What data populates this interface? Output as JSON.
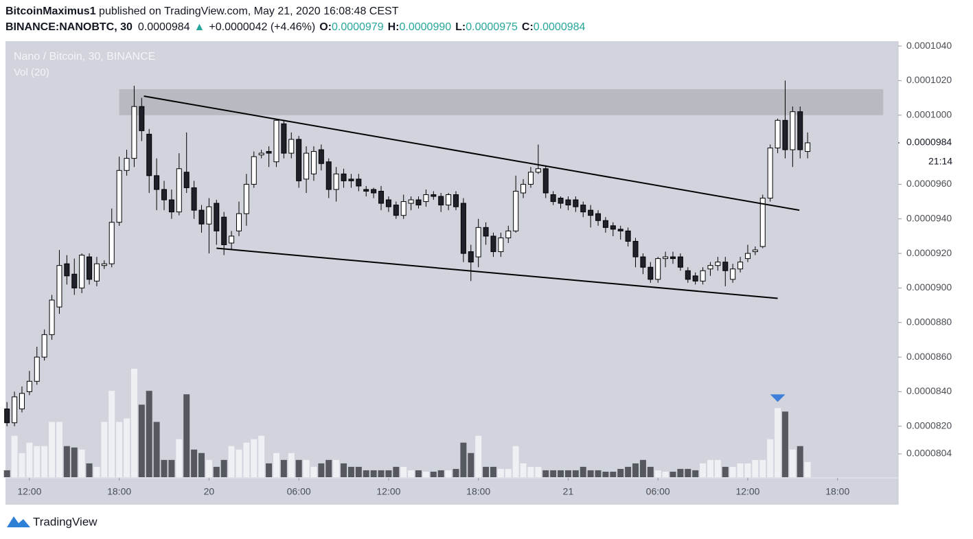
{
  "header": {
    "author": "BitcoinMaximus1",
    "published": " published on TradingView.com, May 21, 2020 16:08:48 CEST",
    "symbol": "BINANCE:NANOBTC, 30",
    "price": "0.0000984",
    "arrow": "▲",
    "change": "+0.0000042 (+4.46%)",
    "o_label": "O:",
    "o": "0.0000979",
    "h_label": "H:",
    "h": "0.0000990",
    "l_label": "L:",
    "l": "0.0000975",
    "c_label": "C:",
    "c": "0.0000984"
  },
  "legend": {
    "title": "Nano / Bitcoin, 30, BINANCE",
    "volume": "Vol (20)"
  },
  "footer": {
    "brand": "TradingView"
  },
  "chart_data": {
    "type": "candlestick",
    "open": [
      8.3e-05,
      8.22e-05,
      8.3e-05,
      8.4e-05,
      8.46e-05,
      8.6e-05,
      8.73e-05,
      8.89e-05,
      9.14e-05,
      9.08e-05,
      9e-05,
      9.18e-05,
      9.04e-05,
      9.13e-05,
      9.14e-05,
      9.38e-05,
      9.68e-05,
      9.75e-05,
      0.0001005,
      9.89e-05,
      9.65e-05,
      9.57e-05,
      9.51e-05,
      9.44e-05,
      9.67e-05,
      9.58e-05,
      9.45e-05,
      9.37e-05,
      9.49e-05,
      9.41e-05,
      9.26e-05,
      9.33e-05,
      9.43e-05,
      9.6e-05,
      9.77e-05,
      9.79e-05,
      9.73e-05,
      9.95e-05,
      9.78e-05,
      9.86e-05,
      9.63e-05,
      9.66e-05,
      9.8e-05,
      9.73e-05,
      9.57e-05,
      9.66e-05,
      9.63e-05,
      9.63e-05,
      9.57e-05,
      9.57e-05,
      9.56e-05,
      9.51e-05,
      9.48e-05,
      9.42e-05,
      9.49e-05,
      9.51e-05,
      9.5e-05,
      9.54e-05,
      9.53e-05,
      9.48e-05,
      9.54e-05,
      9.49e-05,
      9.21e-05,
      9.18e-05,
      9.35e-05,
      9.3e-05,
      9.21e-05,
      9.29e-05,
      9.33e-05,
      9.55e-05,
      9.6e-05,
      9.67e-05,
      9.69e-05,
      9.54e-05,
      9.52e-05,
      9.51e-05,
      9.51e-05,
      9.48e-05,
      9.45e-05,
      9.43e-05,
      9.39e-05,
      9.36e-05,
      9.34e-05,
      9.33e-05,
      9.27e-05,
      9.18e-05,
      9.12e-05,
      9.05e-05,
      9.17e-05,
      9.18e-05,
      9.18e-05,
      9.1e-05,
      9.07e-05,
      9.04e-05,
      9.11e-05,
      9.13e-05,
      9.15e-05,
      9.05e-05,
      9.11e-05,
      9.17e-05,
      9.21e-05,
      9.24e-05,
      9.52e-05,
      9.81e-05,
      9.97e-05,
      9.8e-05,
      0.0001002,
      9.79e-05
    ],
    "high": [
      8.34e-05,
      8.4e-05,
      8.43e-05,
      8.52e-05,
      8.66e-05,
      8.76e-05,
      8.96e-05,
      9.22e-05,
      9.19e-05,
      9.17e-05,
      9.2e-05,
      9.2e-05,
      9.18e-05,
      9.16e-05,
      9.46e-05,
      9.76e-05,
      9.8e-05,
      0.0001017,
      0.000101,
      9.92e-05,
      9.75e-05,
      9.62e-05,
      9.57e-05,
      9.78e-05,
      9.9e-05,
      9.62e-05,
      9.48e-05,
      9.52e-05,
      9.51e-05,
      9.44e-05,
      9.33e-05,
      9.5e-05,
      9.66e-05,
      9.79e-05,
      9.8e-05,
      9.82e-05,
      9.98e-05,
      9.97e-05,
      9.9e-05,
      9.88e-05,
      9.82e-05,
      9.82e-05,
      9.83e-05,
      9.75e-05,
      9.7e-05,
      9.69e-05,
      9.66e-05,
      9.66e-05,
      9.59e-05,
      9.58e-05,
      9.59e-05,
      9.53e-05,
      9.5e-05,
      9.54e-05,
      9.53e-05,
      9.53e-05,
      9.57e-05,
      9.56e-05,
      9.55e-05,
      9.55e-05,
      9.56e-05,
      9.52e-05,
      9.25e-05,
      9.4e-05,
      9.38e-05,
      9.32e-05,
      9.32e-05,
      9.36e-05,
      9.65e-05,
      9.63e-05,
      9.7e-05,
      9.83e-05,
      9.71e-05,
      9.56e-05,
      9.53e-05,
      9.53e-05,
      9.53e-05,
      9.5e-05,
      9.48e-05,
      9.45e-05,
      9.41e-05,
      9.38e-05,
      9.36e-05,
      9.35e-05,
      9.29e-05,
      9.2e-05,
      9.15e-05,
      9.18e-05,
      9.21e-05,
      9.21e-05,
      9.2e-05,
      9.12e-05,
      9.09e-05,
      9.12e-05,
      9.15e-05,
      9.18e-05,
      9.18e-05,
      9.14e-05,
      9.18e-05,
      9.25e-05,
      9.24e-05,
      9.54e-05,
      9.83e-05,
      9.98e-05,
      0.000102,
      0.0001005,
      0.0001005,
      9.9e-05
    ],
    "low": [
      8.2e-05,
      8.2e-05,
      8.28e-05,
      8.38e-05,
      8.44e-05,
      8.58e-05,
      8.7e-05,
      8.85e-05,
      9.02e-05,
      8.96e-05,
      8.97e-05,
      9.02e-05,
      9.01e-05,
      9.11e-05,
      9.12e-05,
      9.36e-05,
      9.65e-05,
      9.7e-05,
      9.85e-05,
      9.55e-05,
      9.45e-05,
      9.45e-05,
      9.4e-05,
      9.42e-05,
      9.55e-05,
      9.4e-05,
      9.32e-05,
      9.2e-05,
      9.25e-05,
      9.19e-05,
      9.22e-05,
      9.3e-05,
      9.36e-05,
      9.58e-05,
      9.75e-05,
      9.7e-05,
      9.7e-05,
      9.75e-05,
      9.75e-05,
      9.58e-05,
      9.55e-05,
      9.62e-05,
      9.68e-05,
      9.52e-05,
      9.5e-05,
      9.58e-05,
      9.58e-05,
      9.56e-05,
      9.53e-05,
      9.52e-05,
      9.45e-05,
      9.44e-05,
      9.4e-05,
      9.4e-05,
      9.45e-05,
      9.46e-05,
      9.47e-05,
      9.51e-05,
      9.44e-05,
      9.45e-05,
      9.45e-05,
      9.15e-05,
      9.04e-05,
      9.12e-05,
      9.25e-05,
      9.18e-05,
      9.18e-05,
      9.26e-05,
      9.32e-05,
      9.52e-05,
      9.58e-05,
      9.66e-05,
      9.52e-05,
      9.48e-05,
      9.46e-05,
      9.45e-05,
      9.44e-05,
      9.41e-05,
      9.35e-05,
      9.36e-05,
      9.32e-05,
      9.3e-05,
      9.28e-05,
      9.24e-05,
      9.12e-05,
      9.08e-05,
      9.03e-05,
      9.03e-05,
      9.12e-05,
      9.14e-05,
      9.1e-05,
      9.03e-05,
      9.02e-05,
      9.02e-05,
      9.07e-05,
      9.1e-05,
      9.01e-05,
      9.03e-05,
      9.09e-05,
      9.15e-05,
      9.19e-05,
      9.23e-05,
      9.5e-05,
      9.78e-05,
      9.75e-05,
      9.7e-05,
      9.75e-05,
      9.75e-05
    ],
    "close": [
      8.22e-05,
      8.37e-05,
      8.39e-05,
      8.46e-05,
      8.6e-05,
      8.73e-05,
      8.93e-05,
      9.13e-05,
      9.07e-05,
      9e-05,
      9.19e-05,
      9.05e-05,
      9.14e-05,
      9.14e-05,
      9.38e-05,
      9.68e-05,
      9.75e-05,
      0.0001005,
      9.91e-05,
      9.65e-05,
      9.57e-05,
      9.51e-05,
      9.44e-05,
      9.69e-05,
      9.58e-05,
      9.45e-05,
      9.37e-05,
      9.47e-05,
      9.33e-05,
      9.25e-05,
      9.3e-05,
      9.43e-05,
      9.6e-05,
      9.76e-05,
      9.78e-05,
      9.78e-05,
      9.97e-05,
      9.78e-05,
      9.86e-05,
      9.62e-05,
      9.78e-05,
      9.79e-05,
      9.72e-05,
      9.57e-05,
      9.66e-05,
      9.62e-05,
      9.62e-05,
      9.59e-05,
      9.56e-05,
      9.55e-05,
      9.49e-05,
      9.47e-05,
      9.42e-05,
      9.5e-05,
      9.51e-05,
      9.48e-05,
      9.54e-05,
      9.53e-05,
      9.48e-05,
      9.54e-05,
      9.47e-05,
      9.2e-05,
      9.15e-05,
      9.35e-05,
      9.3e-05,
      9.21e-05,
      9.29e-05,
      9.33e-05,
      9.56e-05,
      9.6e-05,
      9.67e-05,
      9.69e-05,
      9.55e-05,
      9.5e-05,
      9.49e-05,
      9.48e-05,
      9.47e-05,
      9.44e-05,
      9.42e-05,
      9.39e-05,
      9.35e-05,
      9.34e-05,
      9.33e-05,
      9.27e-05,
      9.18e-05,
      9.12e-05,
      9.05e-05,
      9.17e-05,
      9.18e-05,
      9.17e-05,
      9.12e-05,
      9.05e-05,
      9.04e-05,
      9.1e-05,
      9.13e-05,
      9.15e-05,
      9.1e-05,
      9.11e-05,
      9.15e-05,
      9.2e-05,
      9.22e-05,
      9.52e-05,
      9.81e-05,
      9.97e-05,
      9.8e-05,
      0.0001002,
      9.8e-05,
      9.84e-05
    ],
    "volume": [
      10,
      60,
      35,
      50,
      45,
      45,
      80,
      80,
      45,
      43,
      40,
      20,
      15,
      80,
      125,
      80,
      85,
      157,
      105,
      125,
      80,
      25,
      25,
      55,
      120,
      40,
      35,
      25,
      15,
      25,
      45,
      40,
      50,
      55,
      60,
      20,
      35,
      25,
      35,
      25,
      25,
      15,
      20,
      25,
      25,
      20,
      15,
      15,
      10,
      10,
      10,
      10,
      15,
      15,
      10,
      10,
      8,
      8,
      10,
      10,
      12,
      50,
      35,
      60,
      15,
      15,
      12,
      12,
      45,
      20,
      15,
      15,
      10,
      10,
      10,
      10,
      10,
      15,
      10,
      10,
      8,
      8,
      12,
      15,
      20,
      25,
      15,
      10,
      8,
      8,
      12,
      12,
      10,
      20,
      25,
      25,
      15,
      15,
      20,
      20,
      25,
      25,
      55,
      100,
      95,
      40,
      45,
      22
    ],
    "up_color": "#ffffff",
    "down_color": "#1e2129",
    "volume_up_color": "#eef0f4",
    "volume_down_color": "#55585f",
    "wick_color": "#000000",
    "ylim": [
      7.905e-05,
      0.00010428
    ],
    "yticks": [
      {
        "value": 0.000104,
        "label": "0.0001040"
      },
      {
        "value": 0.000102,
        "label": "0.0001020"
      },
      {
        "value": 0.0001,
        "label": "0.0001000"
      },
      {
        "value": 9.6e-05,
        "label": "0.0000960"
      },
      {
        "value": 9.4e-05,
        "label": "0.0000940"
      },
      {
        "value": 9.2e-05,
        "label": "0.0000920"
      },
      {
        "value": 9e-05,
        "label": "0.0000900"
      },
      {
        "value": 8.8e-05,
        "label": "0.0000880"
      },
      {
        "value": 8.6e-05,
        "label": "0.0000860"
      },
      {
        "value": 8.4e-05,
        "label": "0.0000840"
      },
      {
        "value": 8.2e-05,
        "label": "0.0000820"
      },
      {
        "value": 8.04e-05,
        "label": "0.0000804"
      }
    ],
    "xlim": [
      -0.2,
      119.1
    ],
    "xticks": [
      {
        "value": 3,
        "label": "12:00"
      },
      {
        "value": 15,
        "label": "18:00"
      },
      {
        "value": 27,
        "label": "20"
      },
      {
        "value": 39,
        "label": "06:00"
      },
      {
        "value": 51,
        "label": "12:00"
      },
      {
        "value": 63,
        "label": "18:00"
      },
      {
        "value": 75,
        "label": "21"
      },
      {
        "value": 87,
        "label": "06:00"
      },
      {
        "value": 99,
        "label": "12:00"
      },
      {
        "value": 111,
        "label": "18:00"
      }
    ],
    "last_price": 9.84e-05,
    "countdown": "21:14",
    "zone": {
      "x": [
        15,
        117.1
      ],
      "y": [
        0.0001,
        0.0001015
      ],
      "color": "#b9bac1"
    },
    "trendlines": [
      {
        "x": [
          18.3,
          105.9
        ],
        "y": [
          0.0001011,
          9.45e-05
        ]
      },
      {
        "x": [
          28,
          103
        ],
        "y": [
          9.23e-05,
          8.94e-05
        ]
      }
    ],
    "marker": {
      "x": 103,
      "color": "#3d7fd9"
    }
  }
}
